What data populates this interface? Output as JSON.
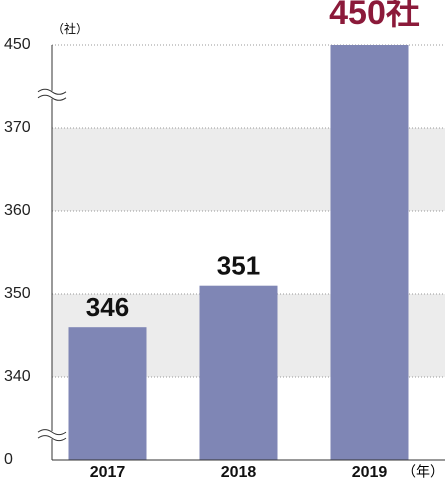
{
  "chart_data": {
    "type": "bar",
    "y_unit": "（社）",
    "x_unit": "（年）",
    "categories": [
      "2017",
      "2018",
      "2019"
    ],
    "values": [
      346,
      351,
      450
    ],
    "value_labels": [
      "346",
      "351",
      "450社"
    ],
    "color": "#7f86b5",
    "highlight_label_color": "#8b1a3a",
    "ylim": [
      0,
      450
    ],
    "yticks": [
      0,
      340,
      350,
      360,
      370,
      450
    ],
    "axis_break": true,
    "grid": true
  }
}
